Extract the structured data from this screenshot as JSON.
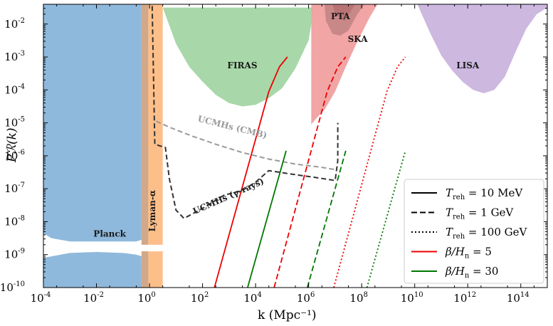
{
  "chart_data": {
    "type": "line",
    "xlabel": "k (Mpc⁻¹)",
    "ylabel": "Pℛ(k)",
    "xscale": "log",
    "yscale": "log",
    "xlim_log10": [
      -4,
      15
    ],
    "ylim_log10": [
      -10,
      -1.4
    ],
    "x_tick_exponents": [
      "-4",
      "-2",
      "0",
      "2",
      "4",
      "6",
      "8",
      "10",
      "12",
      "14"
    ],
    "y_tick_exponents": [
      "-10",
      "-9",
      "-8",
      "-7",
      "-6",
      "-5",
      "-4",
      "-3",
      "-2"
    ],
    "tick_base": "10",
    "regions": [
      {
        "name": "Planck",
        "color": "#8fb9dc",
        "upper": {
          "log10k": [
            -4,
            -3.7,
            -3,
            -2,
            -1,
            -0.5,
            -0.3
          ],
          "log10P": [
            -8.35,
            -8.5,
            -8.6,
            -8.6,
            -8.6,
            -8.6,
            -8.55
          ]
        },
        "lower": {
          "log10k": [
            -4,
            -3,
            -2,
            -1,
            -0.5,
            -0.3
          ],
          "log10P": [
            -9.1,
            -8.95,
            -8.92,
            -8.95,
            -9.0,
            -9.05
          ]
        }
      },
      {
        "name": "Lyman-α",
        "color": "#fdbf8a",
        "log10k_range": [
          -0.3,
          0.5
        ],
        "gap_log10P": [
          -8.7,
          -8.9
        ]
      },
      {
        "name": "FIRAS",
        "color": "#9fd4a0",
        "boundary": {
          "log10k": [
            0.5,
            1.0,
            1.5,
            2.0,
            2.5,
            3.0,
            3.5,
            4.0,
            4.5,
            5.0,
            5.5,
            6.0,
            6.2
          ],
          "log10P": [
            -1.5,
            -2.6,
            -3.3,
            -3.75,
            -4.15,
            -4.4,
            -4.5,
            -4.45,
            -4.25,
            -3.95,
            -3.35,
            -2.5,
            -1.5
          ]
        }
      },
      {
        "name": "SKA",
        "color": "#f0a0a0",
        "boundary": {
          "log10k": [
            6.1,
            6.3,
            6.6,
            7.0,
            7.4,
            7.8,
            8.3,
            8.6
          ],
          "log10P": [
            -5.05,
            -4.85,
            -4.6,
            -4.05,
            -3.3,
            -2.6,
            -1.8,
            -1.4
          ]
        }
      },
      {
        "name": "PTA",
        "color": "#c98888",
        "log10k_range": [
          6.6,
          8.1
        ],
        "log10P_min": -2.35
      },
      {
        "name": "LISA",
        "color": "#cdb8e0",
        "boundary": {
          "log10k": [
            10.1,
            10.6,
            11.0,
            11.4,
            11.8,
            12.2,
            12.6,
            13.0,
            13.4,
            13.8,
            14.2,
            14.6,
            15
          ],
          "log10P": [
            -1.4,
            -2.3,
            -2.95,
            -3.4,
            -3.75,
            -4.0,
            -4.1,
            -4.0,
            -3.6,
            -2.85,
            -2.15,
            -1.7,
            -1.5
          ]
        }
      }
    ],
    "ucmh_curves": [
      {
        "name": "UCMHs (CMB)",
        "color": "#9a9a9a",
        "log10k": [
          0.25,
          0.8,
          1.6,
          2.5,
          3.5,
          4.5,
          5.5,
          6.5,
          7.0
        ],
        "log10P": [
          -4.95,
          -5.15,
          -5.4,
          -5.65,
          -5.9,
          -6.1,
          -6.25,
          -6.35,
          -6.42
        ]
      },
      {
        "name": "UCMHs (γ-rays)",
        "color": "#333333",
        "log10k": [
          0.1,
          0.2,
          0.6,
          0.75,
          1.0,
          1.3,
          2.0,
          2.8,
          3.5,
          4.0,
          4.5,
          5.3,
          6.2,
          7.0,
          7.1,
          7.1
        ],
        "log10P": [
          -1.45,
          -5.65,
          -5.75,
          -6.7,
          -7.65,
          -7.9,
          -7.6,
          -7.2,
          -7.05,
          -6.8,
          -6.45,
          -6.55,
          -6.65,
          -6.75,
          -6.15,
          -5.0
        ]
      }
    ],
    "pt_curves": [
      {
        "T_reh": "10 MeV",
        "beta_over_Hn": 5,
        "style": "solid",
        "color": "#ee0000",
        "log10k": [
          2.45,
          4.5,
          4.9,
          5.2
        ],
        "log10P": [
          -10,
          -4.05,
          -3.3,
          -3.0
        ]
      },
      {
        "T_reh": "10 MeV",
        "beta_over_Hn": 30,
        "style": "solid",
        "color": "#007700",
        "log10k": [
          3.7,
          5.15
        ],
        "log10P": [
          -10,
          -5.85
        ]
      },
      {
        "T_reh": "1 GeV",
        "beta_over_Hn": 5,
        "style": "dashed",
        "color": "#ee0000",
        "log10k": [
          4.7,
          6.7,
          7.1,
          7.4
        ],
        "log10P": [
          -10,
          -4.05,
          -3.3,
          -3.0
        ]
      },
      {
        "T_reh": "1 GeV",
        "beta_over_Hn": 30,
        "style": "dashed",
        "color": "#007700",
        "log10k": [
          5.95,
          7.4
        ],
        "log10P": [
          -10,
          -5.85
        ]
      },
      {
        "T_reh": "100 GeV",
        "beta_over_Hn": 5,
        "style": "dotted",
        "color": "#ee0000",
        "log10k": [
          6.95,
          8.95,
          9.35,
          9.65
        ],
        "log10P": [
          -10,
          -4.05,
          -3.3,
          -3.0
        ]
      },
      {
        "T_reh": "100 GeV",
        "beta_over_Hn": 30,
        "style": "dotted",
        "color": "#007700",
        "log10k": [
          8.2,
          9.65
        ],
        "log10P": [
          -10,
          -5.85
        ]
      }
    ],
    "region_labels": [
      {
        "text": "Planck",
        "log10k": -1.5,
        "log10P": -8.45
      },
      {
        "text": "FIRAS",
        "log10k": 3.5,
        "log10P": -3.35
      },
      {
        "text": "PTA",
        "log10k": 7.2,
        "log10P": -1.85
      },
      {
        "text": "SKA",
        "log10k": 7.85,
        "log10P": -2.55
      },
      {
        "text": "LISA",
        "log10k": 12.0,
        "log10P": -3.35
      }
    ],
    "legend": [
      {
        "label": "T_reh = 10 MeV",
        "sub": "reh",
        "value": " = 10 MeV",
        "style": "solid",
        "color": "#000000"
      },
      {
        "label": "T_reh = 1 GeV",
        "sub": "reh",
        "value": " = 1 GeV",
        "style": "dashed",
        "color": "#000000"
      },
      {
        "label": "T_reh = 100 GeV",
        "sub": "reh",
        "value": " = 100 GeV",
        "style": "dotted",
        "color": "#000000"
      },
      {
        "label": "β/H_n = 5",
        "sub": "n",
        "value": " = 5",
        "style": "solid",
        "color": "#ee0000"
      },
      {
        "label": "β/H_n = 30",
        "sub": "n",
        "value": " = 30",
        "style": "solid",
        "color": "#007700"
      }
    ]
  }
}
